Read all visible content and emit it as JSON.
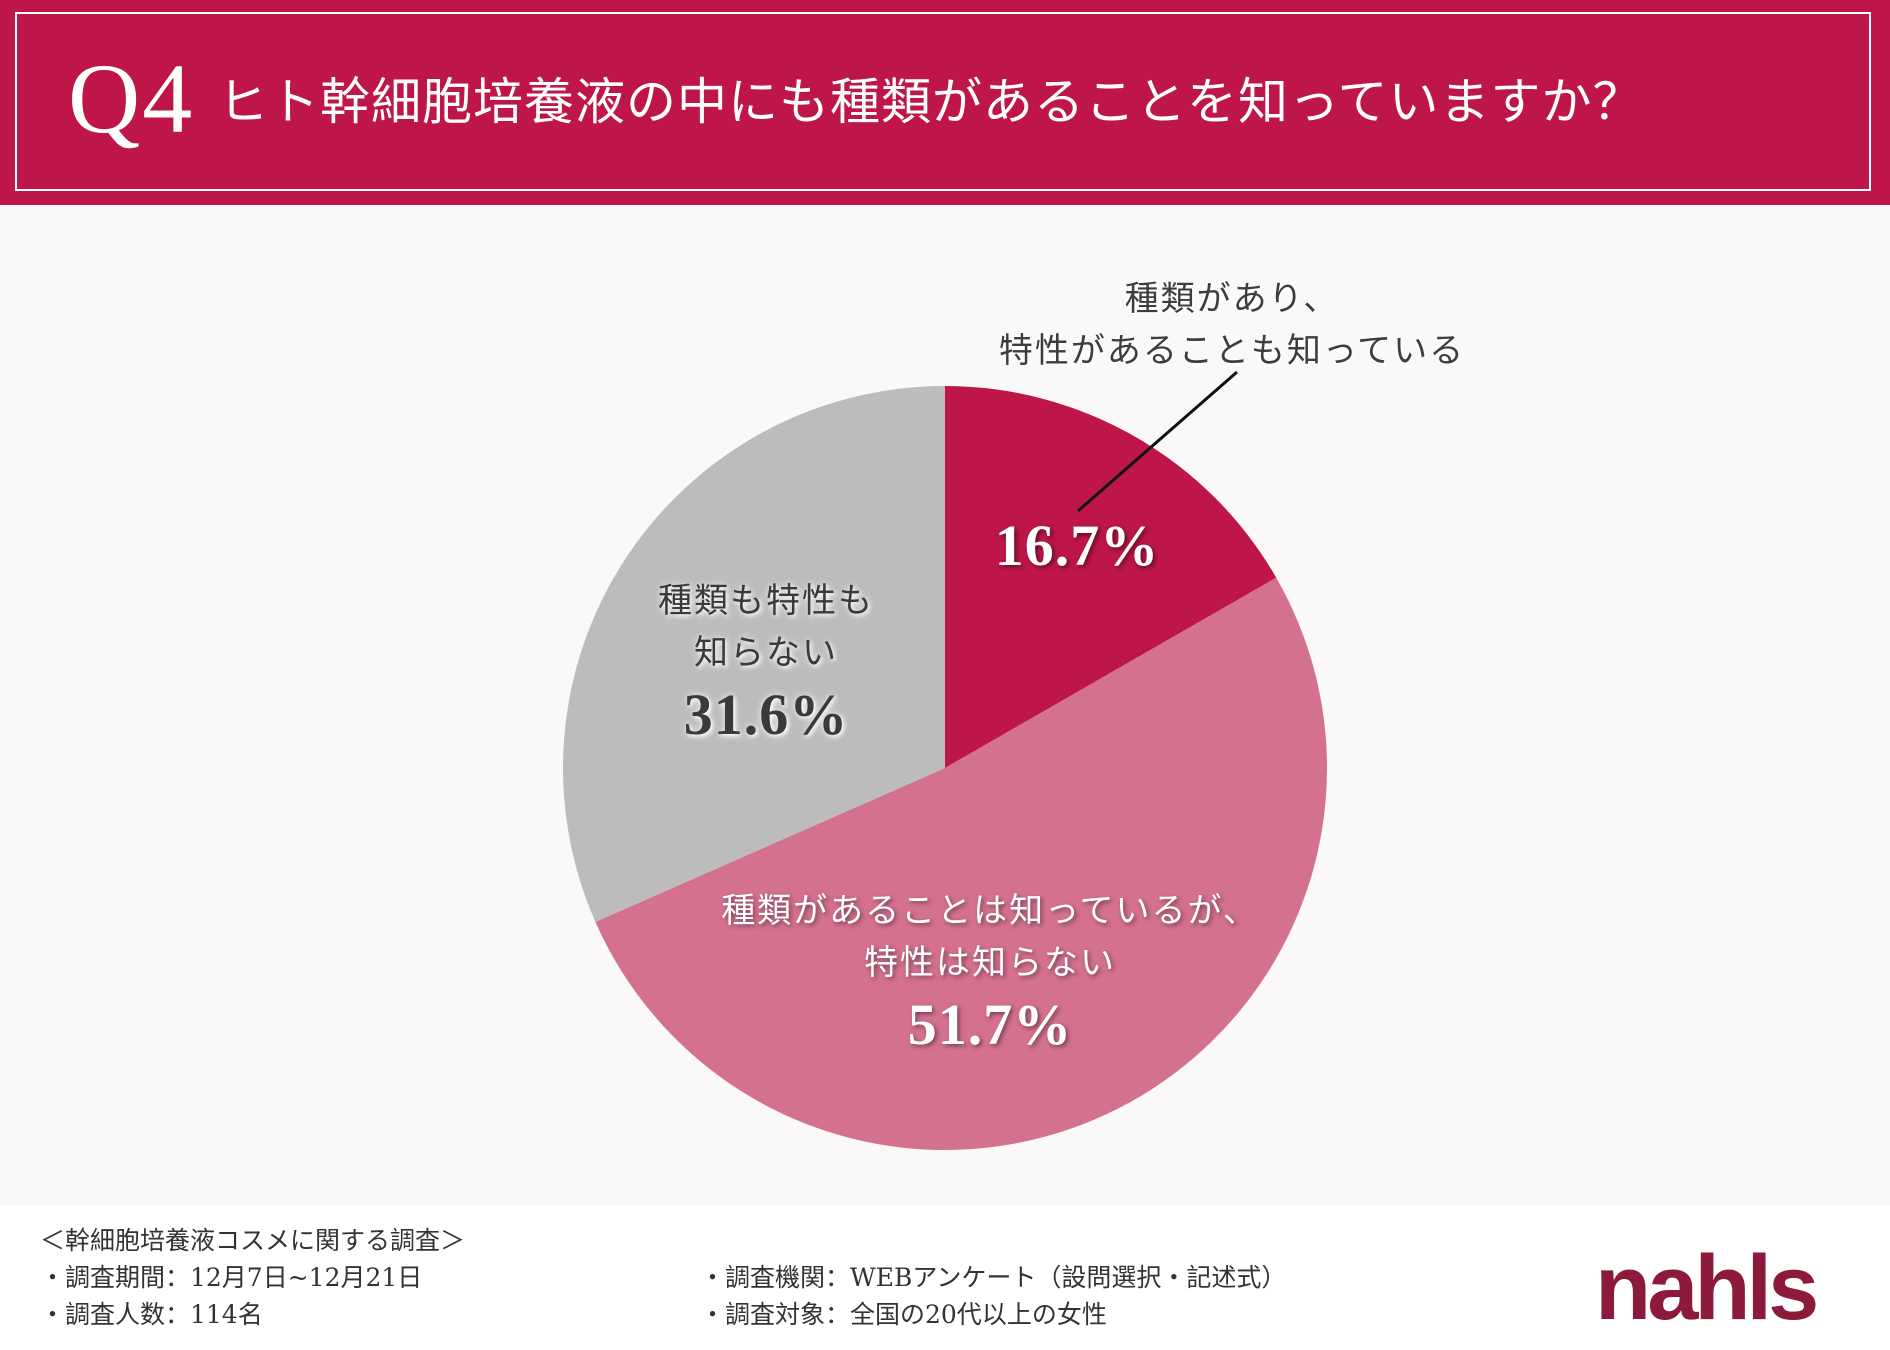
{
  "header": {
    "q_number": "Q4",
    "title": "ヒト幹細胞培養液の中にも種類があることを知っていますか？"
  },
  "chart_data": {
    "type": "pie",
    "title": "ヒト幹細胞培養液の中にも種類があることを知っていますか？",
    "start": "top, clockwise",
    "slices": [
      {
        "label_lines": [
          "種類があり、",
          "特性があることも知っている"
        ],
        "value": 16.7,
        "value_label": "16.7%",
        "color": "#be1649"
      },
      {
        "label_lines": [
          "種類があることは知っているが、",
          "特性は知らない"
        ],
        "value": 51.7,
        "value_label": "51.7%",
        "color": "#d4718f"
      },
      {
        "label_lines": [
          "種類も特性も",
          "知らない"
        ],
        "value": 31.6,
        "value_label": "31.6%",
        "color": "#bcbcbc"
      }
    ]
  },
  "footer": {
    "survey_title": "＜幹細胞培養液コスメに関する調査＞",
    "period": "・調査期間：12月7日~12月21日",
    "respondents": "・調査人数：114名",
    "organization": "・調査機関：WEBアンケート（設問選択・記述式）",
    "target": "・調査対象：全国の20代以上の女性"
  },
  "logo": {
    "text": "nahls",
    "color": "#8c1a3a"
  }
}
